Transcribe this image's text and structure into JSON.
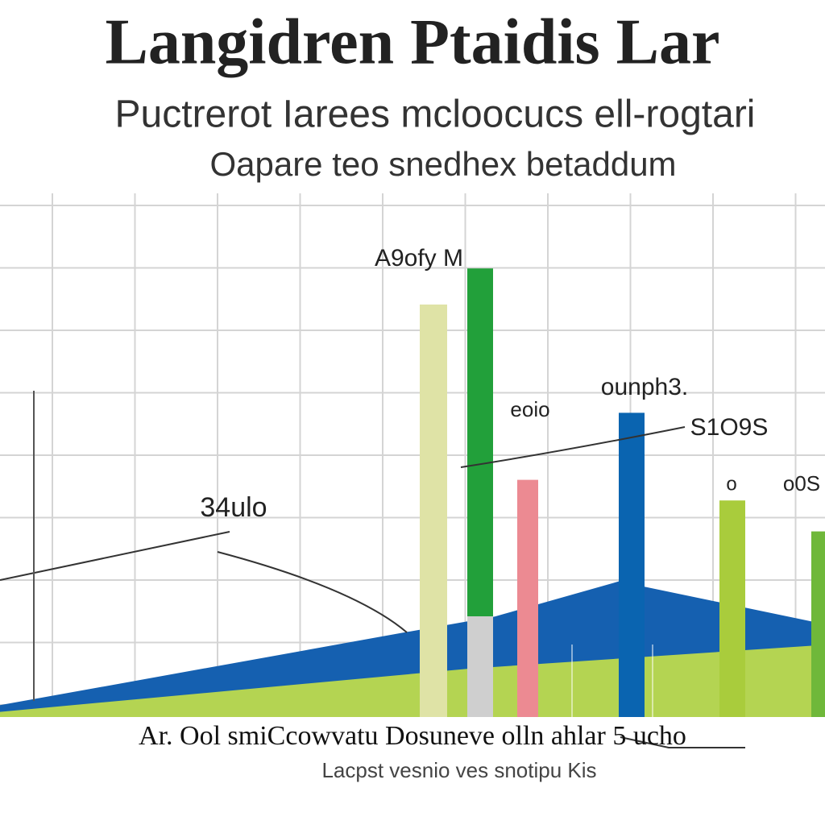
{
  "chart_data": {
    "type": "bar",
    "title": "Langidren Ptaidis Lar",
    "subtitle": [
      "Puctrerot Iarees mcloocucs ell-rogtari",
      "Oapare teo snedhex betaddum"
    ],
    "categories": [
      null,
      null,
      null,
      null,
      null,
      null
    ],
    "values": [
      80,
      87,
      46,
      59,
      42,
      36
    ],
    "colors": [
      "#dfe3a6",
      "#22a03a",
      "#ec8a92",
      "#0a64b0",
      "#a9cc3c",
      "#6fb83a"
    ],
    "annotations": [
      "34ulo",
      "A9ofy M",
      "eoio",
      "ounph3.",
      "S1O9S",
      "o",
      "o0S"
    ],
    "areas": [
      {
        "color": "#1560b0",
        "x": [
          0,
          49,
          60,
          75,
          100
        ],
        "values": [
          2.3,
          16.4,
          19.5,
          26.3,
          18
        ]
      },
      {
        "color": "#b4d452",
        "x": [
          0,
          57,
          100
        ],
        "values": [
          1,
          9.4,
          14
        ]
      }
    ],
    "xlim": [
      0,
      100
    ],
    "ylim": [
      0,
      100
    ],
    "x_tick_text": "Ar. Ool smiCcowvatu Dosuneve olln ahlar 5 ucho",
    "x_label": "Lacpst vesnio ves snotipu Kis",
    "grid": true
  }
}
